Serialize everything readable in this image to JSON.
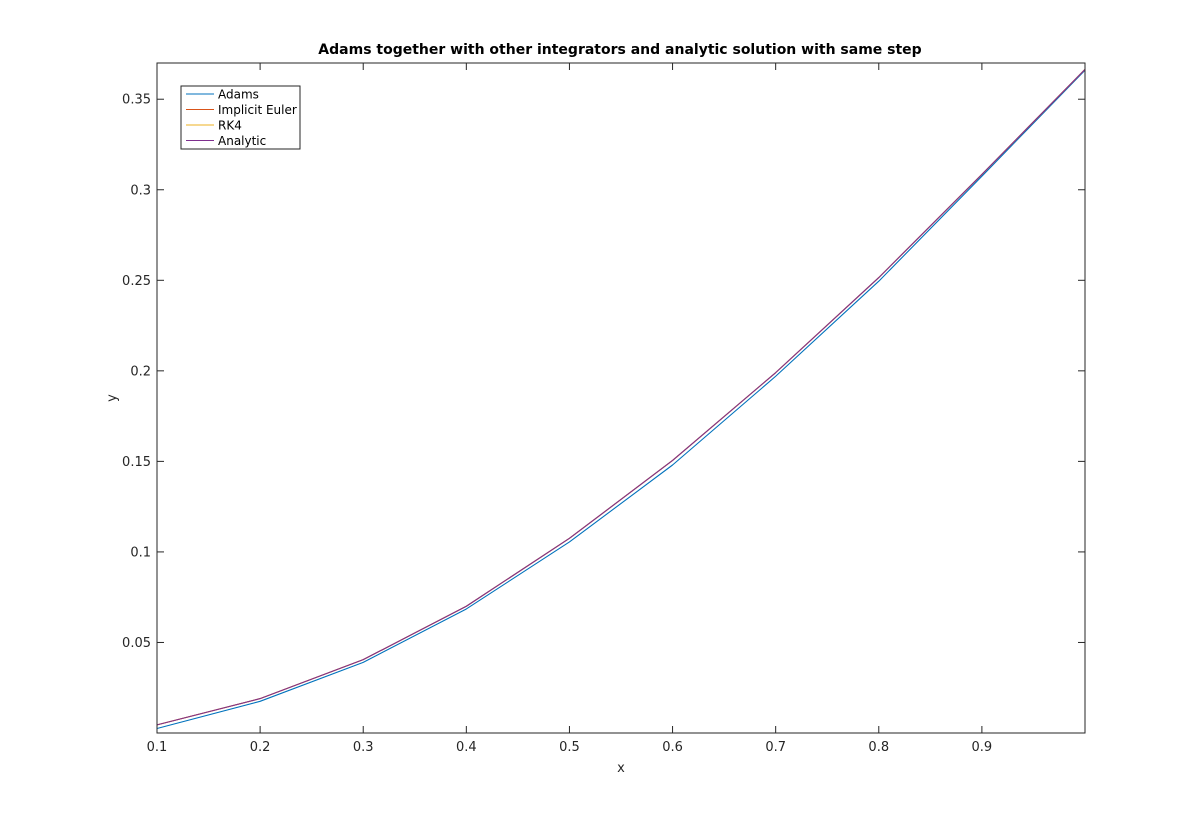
{
  "chart_data": {
    "type": "line",
    "title": "Adams together with other integrators and analytic solution with same step",
    "xlabel": "x",
    "ylabel": "y",
    "xlim": [
      0.1,
      1.0
    ],
    "ylim": [
      0.0,
      0.37
    ],
    "x_ticks": [
      "0.1",
      "0.2",
      "0.3",
      "0.4",
      "0.5",
      "0.6",
      "0.7",
      "0.8",
      "0.9"
    ],
    "x_tick_values": [
      0.1,
      0.2,
      0.3,
      0.4,
      0.5,
      0.6,
      0.7,
      0.8,
      0.9
    ],
    "y_ticks": [
      "0.05",
      "0.1",
      "0.15",
      "0.2",
      "0.25",
      "0.3",
      "0.35"
    ],
    "y_tick_values": [
      0.05,
      0.1,
      0.15,
      0.2,
      0.25,
      0.3,
      0.35
    ],
    "grid": false,
    "legend_position": "top-left",
    "x": [
      0.1,
      0.2,
      0.3,
      0.4,
      0.5,
      0.6,
      0.7,
      0.8,
      0.9,
      1.0
    ],
    "series": [
      {
        "name": "Adams",
        "color": "#0072bd",
        "values": [
          0.0025,
          0.0175,
          0.039,
          0.0685,
          0.1055,
          0.148,
          0.197,
          0.2495,
          0.3075,
          0.366
        ]
      },
      {
        "name": "Implicit Euler",
        "color": "#d95319",
        "values": [
          0.0045,
          0.019,
          0.0405,
          0.07,
          0.1075,
          0.1505,
          0.199,
          0.2515,
          0.3085,
          0.3665
        ]
      },
      {
        "name": "RK4",
        "color": "#edb120",
        "values": [
          0.0045,
          0.019,
          0.0405,
          0.07,
          0.1075,
          0.1505,
          0.199,
          0.2515,
          0.3085,
          0.3665
        ]
      },
      {
        "name": "Analytic",
        "color": "#7e2f8e",
        "values": [
          0.0045,
          0.019,
          0.0405,
          0.07,
          0.1075,
          0.1505,
          0.199,
          0.2515,
          0.3085,
          0.3665
        ]
      }
    ]
  }
}
